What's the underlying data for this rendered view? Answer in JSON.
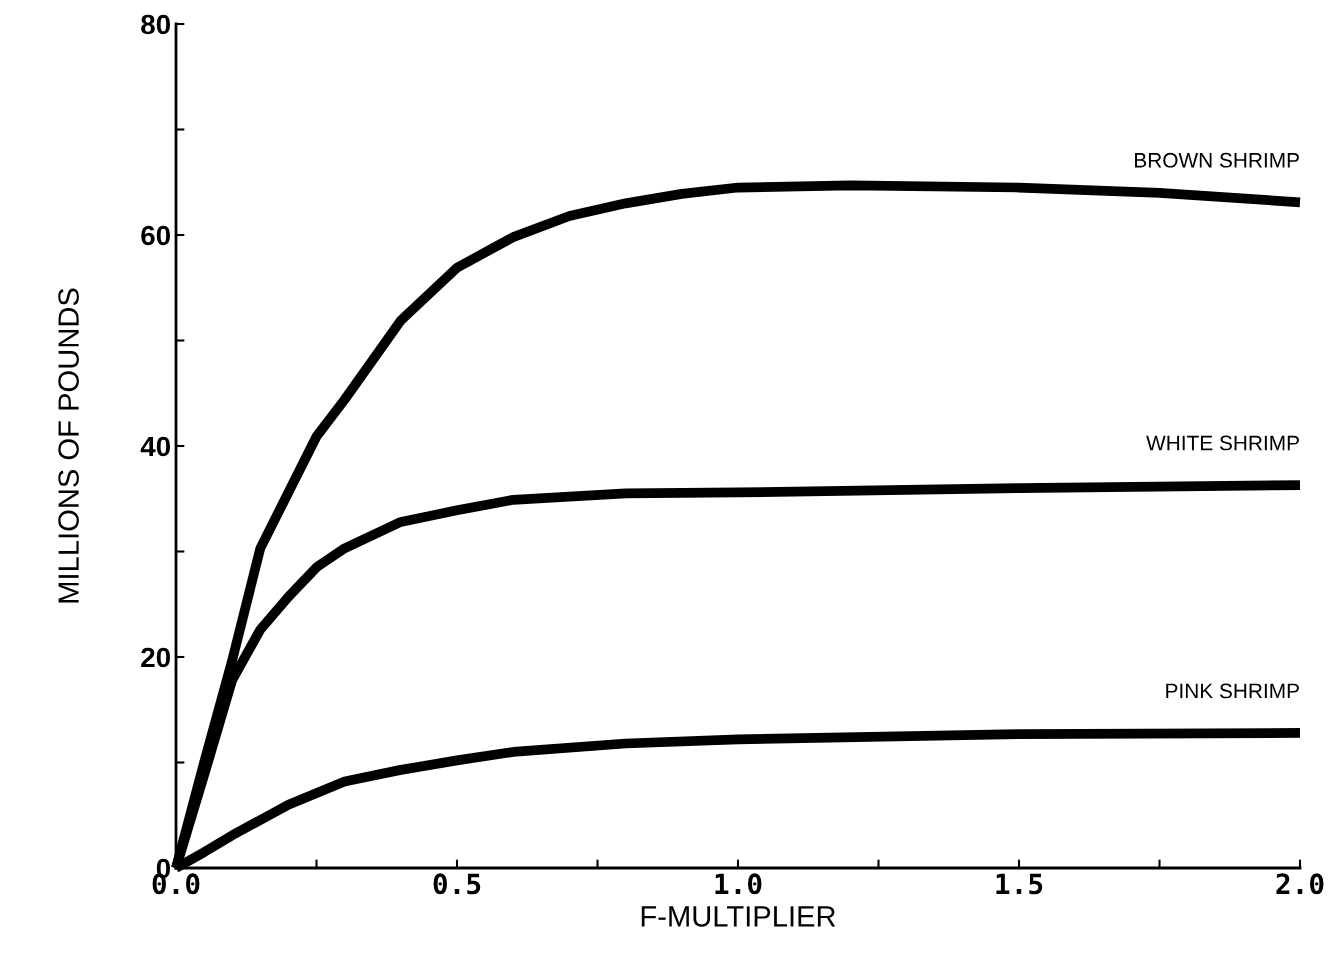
{
  "chart_data": {
    "type": "line",
    "xlabel": "F-MULTIPLIER",
    "ylabel": "MILLIONS OF POUNDS",
    "xlim": [
      0,
      2
    ],
    "ylim": [
      0,
      80
    ],
    "xticks": [
      {
        "value": 0,
        "label": "0.0"
      },
      {
        "value": 0.25,
        "label": null
      },
      {
        "value": 0.5,
        "label": "0.5"
      },
      {
        "value": 0.75,
        "label": null
      },
      {
        "value": 1,
        "label": "1.0"
      },
      {
        "value": 1.25,
        "label": null
      },
      {
        "value": 1.5,
        "label": "1.5"
      },
      {
        "value": 1.75,
        "label": null
      },
      {
        "value": 2,
        "label": "2.0"
      }
    ],
    "yticks": [
      0,
      {
        "value": 10,
        "label": null
      },
      20,
      {
        "value": 30,
        "label": null
      },
      40,
      {
        "value": 50,
        "label": null
      },
      60,
      {
        "value": 70,
        "label": null
      },
      80
    ],
    "grid": false,
    "legend": false,
    "marker": "none",
    "line_style": "solid",
    "series": [
      {
        "name": "BROWN SHRIMP",
        "color": "#000000",
        "x": [
          0,
          0.05,
          0.1,
          0.15,
          0.25,
          0.3,
          0.4,
          0.5,
          0.6,
          0.7,
          0.8,
          0.9,
          1.0,
          1.2,
          1.5,
          1.75,
          2.0
        ],
        "values": [
          0,
          10,
          19.7,
          30.3,
          40.9,
          44.4,
          51.9,
          56.9,
          59.8,
          61.8,
          63,
          63.9,
          64.5,
          64.7,
          64.5,
          64,
          63.1
        ]
      },
      {
        "name": "WHITE SHRIMP",
        "color": "#000000",
        "x": [
          0,
          0.05,
          0.1,
          0.15,
          0.2,
          0.25,
          0.3,
          0.4,
          0.5,
          0.6,
          0.8,
          1.0,
          1.5,
          2.0
        ],
        "values": [
          0,
          8.8,
          17.8,
          22.6,
          25.7,
          28.5,
          30.3,
          32.8,
          33.9,
          34.9,
          35.5,
          35.6,
          36,
          36.3
        ]
      },
      {
        "name": "PINK SHRIMP",
        "color": "#000000",
        "x": [
          0,
          0.05,
          0.1,
          0.2,
          0.3,
          0.4,
          0.5,
          0.6,
          0.8,
          1.0,
          1.5,
          2.0
        ],
        "values": [
          0,
          1.5,
          3.1,
          6,
          8.2,
          9.3,
          10.2,
          11,
          11.8,
          12.2,
          12.7,
          12.8
        ]
      }
    ]
  }
}
